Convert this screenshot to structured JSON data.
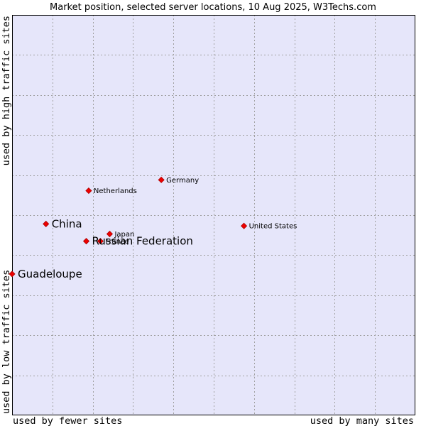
{
  "chart_data": {
    "type": "scatter",
    "title": "Market position, selected server locations, 10 Aug 2025, W3Techs.com",
    "xlabel_left": "used by fewer sites",
    "xlabel_right": "used by many sites",
    "ylabel_top": "used by high traffic sites",
    "ylabel_bottom": "used by low traffic sites",
    "xlim": [
      0,
      10
    ],
    "ylim": [
      0,
      10
    ],
    "grid": true,
    "colors": {
      "plot_bg": "#e6e6fa",
      "grid": "#a0a0a0",
      "point": "#ee0000",
      "point_stroke": "#aa0000"
    },
    "points": [
      {
        "name": "Germany",
        "x": 3.7,
        "y": 5.88,
        "size": "small"
      },
      {
        "name": "Netherlands",
        "x": 1.9,
        "y": 5.61,
        "size": "small"
      },
      {
        "name": "China",
        "x": 0.84,
        "y": 4.78,
        "size": "large"
      },
      {
        "name": "United States",
        "x": 5.75,
        "y": 4.73,
        "size": "small"
      },
      {
        "name": "Japan",
        "x": 2.42,
        "y": 4.53,
        "size": "small"
      },
      {
        "name": "France",
        "x": 2.19,
        "y": 4.35,
        "size": "small"
      },
      {
        "name": "Russian Federation",
        "x": 1.84,
        "y": 4.35,
        "size": "large"
      },
      {
        "name": "Guadeloupe",
        "x": 0.0,
        "y": 3.53,
        "size": "large"
      }
    ]
  }
}
